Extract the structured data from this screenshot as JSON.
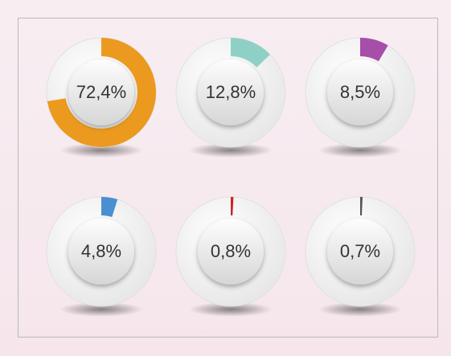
{
  "chart_data": [
    {
      "type": "donut",
      "values": [
        72.4
      ],
      "value_labels": [
        "72,4%"
      ],
      "color": "#ec9a1f"
    },
    {
      "type": "donut",
      "values": [
        12.8
      ],
      "value_labels": [
        "12,8%"
      ],
      "color": "#8fd0c6"
    },
    {
      "type": "donut",
      "values": [
        8.5
      ],
      "value_labels": [
        "8,5%"
      ],
      "color": "#a64ea9"
    },
    {
      "type": "donut",
      "values": [
        4.8
      ],
      "value_labels": [
        "4,8%"
      ],
      "color": "#4a8fd2"
    },
    {
      "type": "donut",
      "values": [
        0.8
      ],
      "value_labels": [
        "0,8%"
      ],
      "color": "#d01f23"
    },
    {
      "type": "donut",
      "values": [
        0.7
      ],
      "value_labels": [
        "0,7%"
      ],
      "color": "#555555"
    }
  ]
}
